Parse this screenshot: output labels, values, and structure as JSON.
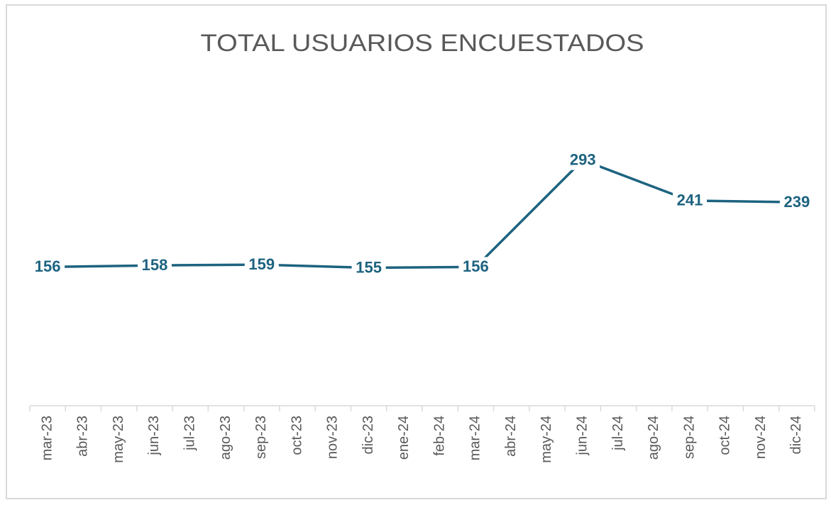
{
  "chart_data": {
    "type": "line",
    "title": "TOTAL USUARIOS ENCUESTADOS",
    "categories": [
      "mar-23",
      "abr-23",
      "may-23",
      "jun-23",
      "jul-23",
      "ago-23",
      "sep-23",
      "oct-23",
      "nov-23",
      "dic-23",
      "ene-24",
      "feb-24",
      "mar-24",
      "abr-24",
      "may-24",
      "jun-24",
      "jul-24",
      "ago-24",
      "sep-24",
      "oct-24",
      "nov-24",
      "dic-24"
    ],
    "series": [
      {
        "color": "#1d6380",
        "x": [
          "mar-23",
          "jun-23",
          "sep-23",
          "dic-23",
          "mar-24",
          "jun-24",
          "sep-24",
          "dic-24"
        ],
        "values": [
          156,
          158,
          159,
          155,
          156,
          293,
          241,
          239
        ]
      }
    ],
    "ylim": [
      0,
      400
    ]
  }
}
